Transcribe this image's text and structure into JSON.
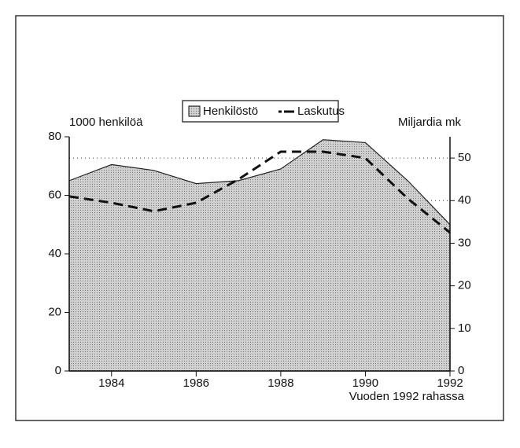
{
  "chart_data": {
    "type": "area",
    "y_label": "1000 henkilöä",
    "y2_label": "Miljardia mk",
    "note": "Vuoden 1992 rahassa",
    "x": [
      1983,
      1984,
      1985,
      1986,
      1987,
      1988,
      1989,
      1990,
      1991,
      1992
    ],
    "xlim": [
      1983,
      1992
    ],
    "xticks": [
      1984,
      1986,
      1988,
      1990,
      1992
    ],
    "ylim": [
      0,
      80
    ],
    "yticks": [
      0,
      20,
      40,
      60,
      80
    ],
    "y2lim": [
      0,
      55
    ],
    "y2ticks": [
      0,
      10,
      20,
      30,
      40,
      50
    ],
    "grid": true,
    "legend": "top",
    "series": [
      {
        "name": "Henkilöstö",
        "style": "area",
        "color": "#c4c4c4",
        "axis": "y",
        "values": [
          65,
          70.5,
          68.5,
          64,
          65,
          69,
          79,
          78,
          65,
          50
        ]
      },
      {
        "name": "Laskutus",
        "style": "dashed",
        "color": "#111111",
        "axis": "y2",
        "values": [
          41,
          39.5,
          37.5,
          39.5,
          45,
          51.5,
          51.5,
          50,
          40.5,
          32.5
        ]
      }
    ]
  }
}
